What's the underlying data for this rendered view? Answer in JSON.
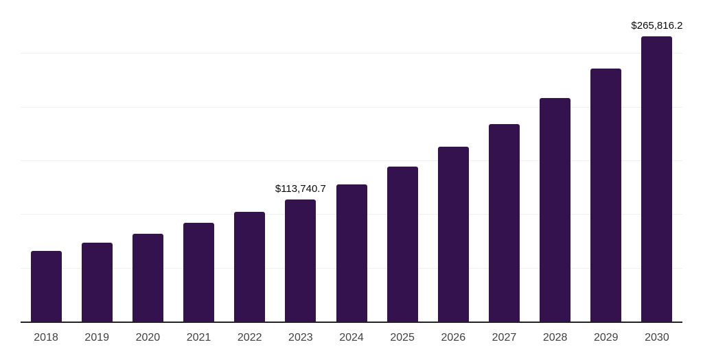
{
  "chart_data": {
    "type": "bar",
    "title": "",
    "xlabel": "",
    "ylabel": "",
    "categories": [
      "2018",
      "2019",
      "2020",
      "2021",
      "2022",
      "2023",
      "2024",
      "2025",
      "2026",
      "2027",
      "2028",
      "2029",
      "2030"
    ],
    "values": [
      65800,
      73400,
      82000,
      91900,
      102100,
      113740.7,
      127400,
      144400,
      162600,
      183900,
      208200,
      235300,
      265816.2
    ],
    "value_labels": [
      "",
      "",
      "",
      "",
      "",
      "$113,740.7",
      "",
      "",
      "",
      "",
      "",
      "",
      "$265,816.2"
    ],
    "ylim": [
      0,
      300000
    ],
    "grid_step": 50000,
    "grid": "horizontal-only",
    "y_axis_tick_labels": "none",
    "legend": "none"
  },
  "colors": {
    "bar": "#33124d",
    "grid": "#efefef",
    "axis": "#222222",
    "tick_label": "#404040",
    "data_label": "#0a0a0a",
    "background": "#ffffff"
  }
}
